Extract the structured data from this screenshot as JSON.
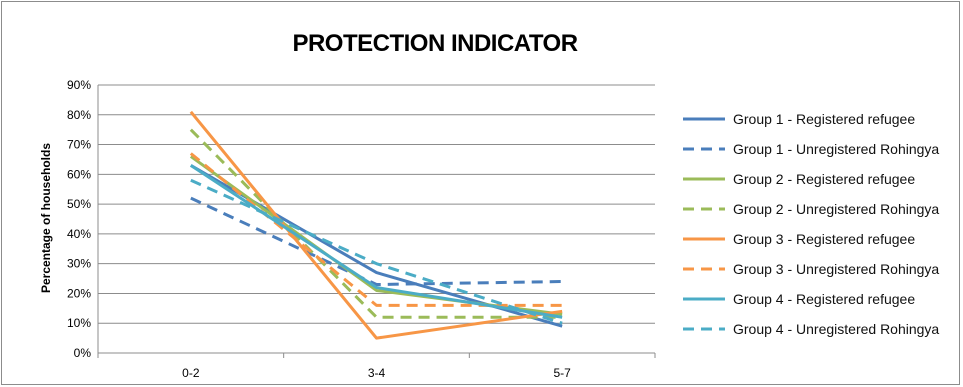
{
  "chart_data": {
    "type": "line",
    "title": "PROTECTION INDICATOR",
    "xlabel": "",
    "ylabel": "Percentage of households",
    "categories": [
      "0-2",
      "3-4",
      "5-7"
    ],
    "ylim": [
      0,
      90
    ],
    "yticks": [
      "0%",
      "10%",
      "20%",
      "30%",
      "40%",
      "50%",
      "60%",
      "70%",
      "80%",
      "90%"
    ],
    "grid": true,
    "legend_position": "right",
    "series": [
      {
        "name": "Group 1 - Registered refugee",
        "values": [
          63,
          27,
          9
        ],
        "color": "#4a7ebb",
        "dashed": false
      },
      {
        "name": "Group 1 - Unregistered Rohingya",
        "values": [
          52,
          23,
          24
        ],
        "color": "#4a7ebb",
        "dashed": true
      },
      {
        "name": "Group 2 - Registered refugee",
        "values": [
          66,
          21,
          13
        ],
        "color": "#9bbb59",
        "dashed": false
      },
      {
        "name": "Group 2 - Unregistered Rohingya",
        "values": [
          75,
          12,
          12
        ],
        "color": "#9bbb59",
        "dashed": true
      },
      {
        "name": "Group 3 - Registered refugee",
        "values": [
          81,
          5,
          14
        ],
        "color": "#f79646",
        "dashed": false
      },
      {
        "name": "Group 3 - Unregistered Rohingya",
        "values": [
          67,
          16,
          16
        ],
        "color": "#f79646",
        "dashed": true
      },
      {
        "name": "Group 4 - Registered refugee",
        "values": [
          63,
          22,
          12
        ],
        "color": "#4bacc6",
        "dashed": false
      },
      {
        "name": "Group 4 - Unregistered Rohingya",
        "values": [
          58,
          30,
          10
        ],
        "color": "#4bacc6",
        "dashed": true
      }
    ]
  }
}
